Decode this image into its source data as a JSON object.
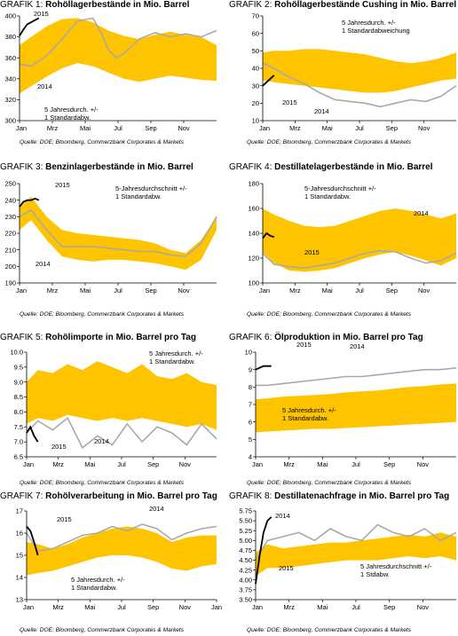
{
  "colors": {
    "band": "#FFC400",
    "avg": "#FFD84A",
    "y2014": "#A9A9A9",
    "y2015": "#000000"
  },
  "sources": {
    "top": "Quelle: DOE; Bloomberg, Commerzbank Corporates & Markets",
    "middle": "Quelle: DOE; Bloomberg, Commerzbank Corporates & Markets",
    "bottom": "Quelle: DOE; Bloomberg, Commerzbank Corporates & Markets"
  },
  "chart_data": [
    {
      "type": "area",
      "label": "GRAFIK 1",
      "title": "Rohöllagerbestände in Mio. Barrel",
      "x_ticks": [
        "Jan",
        "Mrz",
        "Mai",
        "Jul",
        "Sep",
        "Nov"
      ],
      "ylim": [
        300,
        400
      ],
      "y_ticks": [
        300,
        320,
        340,
        360,
        380,
        400
      ],
      "x": [
        1,
        4,
        8,
        12,
        16,
        20,
        24,
        28,
        32,
        36,
        40,
        44,
        48,
        52
      ],
      "band_low": [
        326,
        333,
        342,
        350,
        355,
        352,
        346,
        340,
        337,
        340,
        343,
        341,
        339,
        338
      ],
      "band_high": [
        372,
        380,
        390,
        397,
        398,
        394,
        386,
        381,
        378,
        382,
        385,
        382,
        380,
        372
      ],
      "series": [
        {
          "name": "2014",
          "x": [
            1,
            4,
            8,
            12,
            16,
            20,
            22,
            24,
            26,
            28,
            32,
            36,
            40,
            44,
            48,
            52
          ],
          "values": [
            354,
            352,
            362,
            378,
            395,
            398,
            385,
            368,
            360,
            364,
            378,
            384,
            380,
            383,
            380,
            386
          ]
        },
        {
          "name": "2015",
          "x": [
            1,
            2,
            3,
            4,
            5,
            6
          ],
          "values": [
            381,
            387,
            392,
            394,
            396,
            398
          ]
        }
      ],
      "annotations": [
        "2015",
        "2014",
        "5 Jahresdurch. +/- 1 Standardabw."
      ]
    },
    {
      "type": "area",
      "label": "GRAFIK 2",
      "title": "Rohöllagerbestände Cushing in Mio. Barrel",
      "x_ticks": [
        "Jan",
        "Mrz",
        "Mai",
        "Jul",
        "Sep",
        "Nov"
      ],
      "ylim": [
        10,
        70
      ],
      "y_ticks": [
        10,
        20,
        30,
        40,
        50,
        60,
        70
      ],
      "x": [
        1,
        4,
        8,
        12,
        16,
        20,
        24,
        28,
        32,
        36,
        40,
        44,
        48,
        52
      ],
      "band_low": [
        33,
        32,
        31,
        30,
        29,
        28,
        27,
        26,
        26,
        27,
        29,
        31,
        33,
        34
      ],
      "band_high": [
        49,
        50,
        50,
        51,
        51,
        50,
        49,
        48,
        46,
        44,
        43,
        44,
        46,
        49
      ],
      "series": [
        {
          "name": "2014",
          "x": [
            1,
            4,
            8,
            12,
            16,
            20,
            24,
            28,
            32,
            36,
            40,
            44,
            48,
            52
          ],
          "values": [
            43,
            40,
            35,
            31,
            26,
            22,
            21,
            20,
            18,
            20,
            22,
            21,
            24,
            30
          ]
        },
        {
          "name": "2015",
          "x": [
            1,
            2,
            3,
            4
          ],
          "values": [
            30,
            32,
            34,
            36
          ]
        }
      ],
      "annotations": [
        "5 Jahresdurch. +/- 1 Standardabweichung",
        "2015",
        "2014"
      ]
    },
    {
      "type": "area",
      "label": "GRAFIK 3",
      "title": "Benzinlagerbestände in Mio. Barrel",
      "x_ticks": [
        "Jan",
        "Mrz",
        "Mai",
        "Jul",
        "Sep",
        "Nov"
      ],
      "ylim": [
        190,
        250
      ],
      "y_ticks": [
        190,
        200,
        210,
        220,
        230,
        240,
        250
      ],
      "x": [
        1,
        4,
        8,
        12,
        16,
        20,
        24,
        28,
        32,
        36,
        40,
        44,
        48,
        52
      ],
      "band_low": [
        222,
        228,
        216,
        206,
        204,
        203,
        204,
        204,
        203,
        202,
        200,
        198,
        204,
        222
      ],
      "band_high": [
        236,
        242,
        230,
        222,
        220,
        219,
        218,
        217,
        216,
        214,
        210,
        208,
        216,
        230
      ],
      "series": [
        {
          "name": "2014",
          "x": [
            1,
            4,
            8,
            12,
            16,
            20,
            24,
            28,
            32,
            36,
            40,
            44,
            48,
            52
          ],
          "values": [
            230,
            234,
            222,
            212,
            212,
            212,
            211,
            210,
            209,
            209,
            207,
            206,
            214,
            230
          ]
        },
        {
          "name": "2015",
          "x": [
            1,
            2,
            3,
            4,
            5,
            6
          ],
          "values": [
            236,
            239,
            240,
            240,
            241,
            240
          ]
        }
      ],
      "annotations": [
        "2015",
        "5-Jahresdurchschnitt +/- 1 Standardabw.",
        "2014"
      ]
    },
    {
      "type": "area",
      "label": "GRAFIK 4",
      "title": "Destillatelagerbestände in Mio. Barrel",
      "x_ticks": [
        "Jan",
        "Mrz",
        "Mai",
        "Jul",
        "Sep",
        "Nov"
      ],
      "ylim": [
        100,
        180
      ],
      "y_ticks": [
        100,
        120,
        140,
        160,
        180
      ],
      "x": [
        1,
        4,
        8,
        12,
        16,
        20,
        24,
        28,
        32,
        36,
        40,
        44,
        48,
        52
      ],
      "band_low": [
        125,
        116,
        110,
        109,
        110,
        112,
        116,
        120,
        123,
        125,
        122,
        118,
        114,
        120
      ],
      "band_high": [
        160,
        155,
        150,
        146,
        145,
        146,
        150,
        154,
        158,
        160,
        158,
        155,
        152,
        156
      ],
      "series": [
        {
          "name": "2014",
          "x": [
            1,
            4,
            8,
            12,
            16,
            20,
            24,
            28,
            32,
            36,
            40,
            44,
            48,
            52
          ],
          "values": [
            124,
            115,
            113,
            112,
            114,
            116,
            120,
            124,
            126,
            125,
            120,
            116,
            118,
            124
          ]
        },
        {
          "name": "2015",
          "x": [
            1,
            2,
            3,
            4
          ],
          "values": [
            136,
            140,
            138,
            137
          ]
        }
      ],
      "annotations": [
        "5-Jahresdurchschnitt +/- 1 Standardabw.",
        "2014",
        "2015"
      ]
    },
    {
      "type": "area",
      "label": "GRAFIK 5",
      "title": "Rohölimporte in Mio. Barrel pro Tag",
      "x_ticks": [
        "Jan",
        "Mrz",
        "Mai",
        "Jul",
        "Sep",
        "Nov"
      ],
      "ylim": [
        6.5,
        10.0
      ],
      "y_ticks": [
        6.5,
        7.0,
        7.5,
        8.0,
        8.5,
        9.0,
        9.5,
        10.0
      ],
      "x": [
        1,
        4,
        8,
        12,
        16,
        20,
        24,
        28,
        32,
        36,
        40,
        44,
        48,
        52
      ],
      "band_low": [
        7.6,
        7.8,
        7.7,
        7.9,
        7.8,
        7.7,
        7.8,
        7.7,
        7.8,
        7.7,
        7.6,
        7.5,
        7.6,
        7.4
      ],
      "band_high": [
        9.0,
        9.4,
        9.3,
        9.6,
        9.4,
        9.7,
        9.5,
        9.3,
        9.6,
        9.2,
        9.1,
        9.3,
        9.0,
        8.9
      ],
      "series": [
        {
          "name": "2014",
          "x": [
            1,
            4,
            8,
            12,
            16,
            20,
            24,
            28,
            32,
            36,
            40,
            44,
            48,
            52
          ],
          "values": [
            7.3,
            7.7,
            7.4,
            7.8,
            6.8,
            7.2,
            6.9,
            7.6,
            7.0,
            7.5,
            7.3,
            6.9,
            7.6,
            7.1
          ]
        },
        {
          "name": "2015",
          "x": [
            1,
            2,
            3,
            4
          ],
          "values": [
            7.3,
            7.5,
            7.2,
            7.0
          ]
        }
      ],
      "annotations": [
        "5 Jahresdurch. +/- 1 Standardabw.",
        "2014",
        "2015"
      ]
    },
    {
      "type": "area",
      "label": "GRAFIK 6",
      "title": "Ölproduktion in Mio. Barrel pro Tag",
      "x_ticks": [
        "Jan",
        "Mrz",
        "Mai",
        "Jul",
        "Sep",
        "Nov"
      ],
      "ylim": [
        4.0,
        10.0
      ],
      "y_ticks": [
        4.0,
        5.0,
        6.0,
        7.0,
        8.0,
        9.0,
        10.0
      ],
      "x": [
        1,
        4,
        8,
        12,
        16,
        20,
        24,
        28,
        32,
        36,
        40,
        44,
        48,
        52
      ],
      "band_low": [
        5.4,
        5.45,
        5.5,
        5.55,
        5.6,
        5.6,
        5.65,
        5.7,
        5.75,
        5.8,
        5.85,
        5.9,
        5.95,
        6.0
      ],
      "band_high": [
        7.3,
        7.35,
        7.45,
        7.5,
        7.55,
        7.6,
        7.7,
        7.75,
        7.8,
        7.9,
        8.0,
        8.05,
        8.15,
        8.2
      ],
      "series": [
        {
          "name": "2014",
          "x": [
            1,
            4,
            8,
            12,
            16,
            20,
            24,
            28,
            32,
            36,
            40,
            44,
            48,
            52
          ],
          "values": [
            8.1,
            8.1,
            8.2,
            8.3,
            8.4,
            8.5,
            8.6,
            8.6,
            8.7,
            8.8,
            8.9,
            9.0,
            9.0,
            9.1
          ]
        },
        {
          "name": "2015",
          "x": [
            1,
            2,
            3,
            4,
            5
          ],
          "values": [
            9.0,
            9.1,
            9.2,
            9.2,
            9.2
          ]
        }
      ],
      "annotations": [
        "2015",
        "2014",
        "5 Jahresdurch. +/- 1 Standardabw."
      ]
    },
    {
      "type": "area",
      "label": "GRAFIK 7",
      "title": "Rohölverarbeitung in Mio. Barrel pro Tag",
      "x_ticks": [
        "Jan",
        "Mrz",
        "Mai",
        "Jul",
        "Sep",
        "Nov",
        "Jan"
      ],
      "ylim": [
        13.0,
        17.0
      ],
      "y_ticks": [
        13.0,
        14.0,
        15.0,
        16.0,
        17.0
      ],
      "x": [
        1,
        4,
        8,
        12,
        16,
        20,
        24,
        28,
        32,
        36,
        40,
        44,
        48,
        52
      ],
      "band_low": [
        14.1,
        14.2,
        14.3,
        14.5,
        14.7,
        14.9,
        15.0,
        15.0,
        14.9,
        14.7,
        14.4,
        14.3,
        14.5,
        14.6
      ],
      "band_high": [
        15.6,
        15.5,
        15.3,
        15.5,
        15.8,
        16.0,
        16.2,
        16.3,
        16.2,
        16.0,
        15.6,
        15.8,
        15.9,
        15.9
      ],
      "series": [
        {
          "name": "2014",
          "x": [
            1,
            4,
            8,
            12,
            16,
            20,
            24,
            28,
            32,
            36,
            40,
            44,
            48,
            52
          ],
          "values": [
            16.0,
            15.2,
            15.3,
            15.6,
            15.9,
            16.0,
            16.3,
            16.1,
            16.4,
            16.2,
            15.7,
            16.0,
            16.2,
            16.3
          ]
        },
        {
          "name": "2015",
          "x": [
            1,
            2,
            3,
            4
          ],
          "values": [
            16.3,
            16.1,
            15.6,
            15.0
          ]
        }
      ],
      "annotations": [
        "2015",
        "2014",
        "5 Jahresdurch. +/- 1 Standardabw."
      ]
    },
    {
      "type": "area",
      "label": "GRAFIK 8",
      "title": "Destillatenachfrage in Mio. Barrel pro Tag",
      "x_ticks": [
        "Jan",
        "Mrz",
        "Mai",
        "Jul",
        "Sep",
        "Nov"
      ],
      "ylim": [
        3.5,
        5.75
      ],
      "y_ticks": [
        3.5,
        3.75,
        4.0,
        4.25,
        4.5,
        4.75,
        5.0,
        5.25,
        5.5,
        5.75
      ],
      "x": [
        1,
        4,
        8,
        12,
        16,
        20,
        24,
        28,
        32,
        36,
        40,
        44,
        48,
        52
      ],
      "band_low": [
        4.1,
        4.3,
        4.3,
        4.35,
        4.4,
        4.45,
        4.5,
        4.5,
        4.5,
        4.55,
        4.6,
        4.55,
        4.6,
        4.5
      ],
      "band_high": [
        4.7,
        4.9,
        4.8,
        4.85,
        4.9,
        4.95,
        4.95,
        5.0,
        5.05,
        5.1,
        5.15,
        5.1,
        5.2,
        5.1
      ],
      "series": [
        {
          "name": "2014",
          "x": [
            1,
            4,
            8,
            12,
            16,
            20,
            24,
            28,
            32,
            36,
            40,
            44,
            48,
            52
          ],
          "values": [
            4.5,
            5.0,
            5.1,
            5.2,
            5.0,
            5.3,
            5.1,
            5.0,
            5.4,
            5.2,
            5.1,
            5.3,
            5.0,
            5.2
          ]
        },
        {
          "name": "2015",
          "x": [
            1,
            2,
            3,
            4,
            5
          ],
          "values": [
            3.9,
            4.6,
            5.2,
            5.5,
            5.6
          ]
        }
      ],
      "annotations": [
        "2014",
        "2015",
        "5 Jahresdurchschnitt +/- 1 Stdabw."
      ]
    }
  ]
}
